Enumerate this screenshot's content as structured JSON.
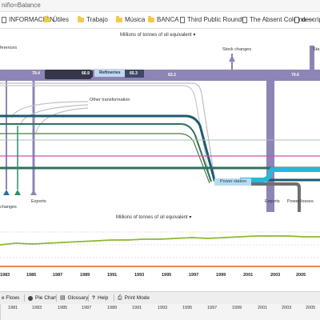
{
  "browser": {
    "url_fragment": "niño=Balance",
    "bookmarks": [
      {
        "label": "INFORMACIÓN",
        "icon": "page-icon"
      },
      {
        "label": "Útiles",
        "icon": "folder-icon"
      },
      {
        "label": "Trabajo",
        "icon": "folder-icon"
      },
      {
        "label": "Música",
        "icon": "folder-icon"
      },
      {
        "label": "BANCA",
        "icon": "folder-icon"
      },
      {
        "label": "Third Public Roundta",
        "icon": "page-icon"
      },
      {
        "label": "The Absent Column —",
        "icon": "page-icon"
      },
      {
        "label": "descriptive",
        "icon": "page-icon"
      }
    ]
  },
  "sankey": {
    "unit_selector": "Millions of tonnes of oil equivalent",
    "labels": {
      "references": "ferences",
      "stock_changes": "Stock changes",
      "refineries": "Refineries",
      "other_transformation": "Other transformation",
      "power_station": "Power station",
      "exports_left": "Exports",
      "changes_left": "changes",
      "exports_right": "Exports",
      "power_losses": "Power losses",
      "sta": "Sta"
    },
    "values": {
      "v1": "79.4",
      "v2": "66.9",
      "v3": "65.3",
      "v4": "63.2",
      "v5": "79.6"
    }
  },
  "timeseries": {
    "unit_selector": "Millions of tonnes of oil equivalent",
    "years": [
      "1983",
      "1985",
      "1987",
      "1989",
      "1991",
      "1993",
      "1995",
      "1997",
      "1999",
      "2001",
      "2003",
      "2005"
    ]
  },
  "toolbar": {
    "flows": "e Flows",
    "pie_chart": "Pie Chart",
    "glossary": "Glossary",
    "help": "Help",
    "print_mode": "Print Mode"
  },
  "timeline": {
    "years": [
      "1981",
      "1983",
      "1985",
      "1987",
      "1989",
      "1991",
      "1993",
      "1995",
      "1997",
      "1999",
      "2001",
      "2003",
      "2005"
    ]
  },
  "colors": {
    "purple": "#8e84b6",
    "dark": "#36364a",
    "teal_dark": "#1f5a6e",
    "green_dark": "#2f6f5e",
    "cyan": "#26b8d8",
    "magenta": "#d14fb0",
    "series_green": "#8cb832",
    "series_orange": "#e0621c"
  }
}
